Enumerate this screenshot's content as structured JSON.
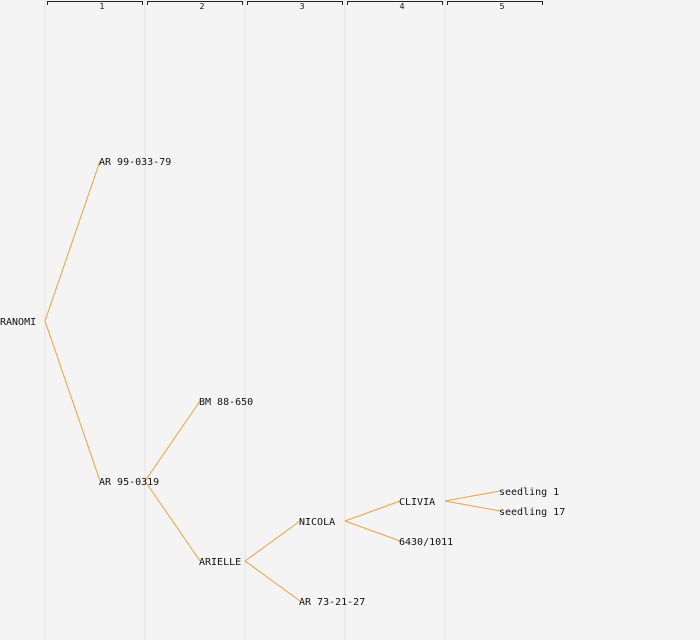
{
  "generations": [
    "1",
    "2",
    "3",
    "4",
    "5"
  ],
  "root": "RANOMI",
  "nodes": {
    "ranomi": "RANOMI",
    "ar99": "AR 99-033-79",
    "ar95": "AR 95-0319",
    "bm88": "BM 88-650",
    "arielle": "ARIELLE",
    "nicola": "NICOLA",
    "ar73": "AR 73-21-27",
    "clivia": "CLIVIA",
    "n6430": "6430/1011",
    "seedling1": "seedling 1",
    "seedling17": "seedling 17"
  },
  "colors": {
    "background": "#f4f4f4",
    "line": "#f0a040",
    "divider": "#e2e2e2",
    "bracket": "#222222"
  }
}
